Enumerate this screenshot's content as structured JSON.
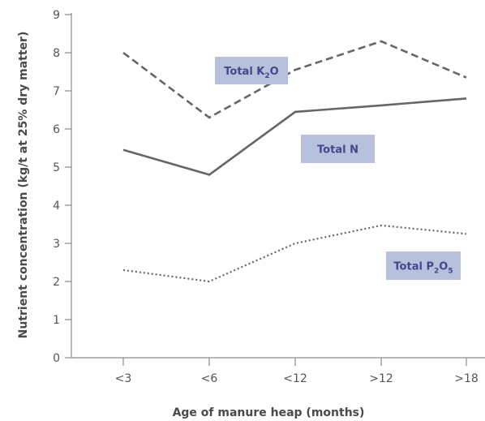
{
  "chart_data": {
    "type": "line",
    "categories": [
      "<3",
      "<6",
      "<12",
      ">12",
      ">18"
    ],
    "series": [
      {
        "name": "Total K2O",
        "label_main": "Total K",
        "label_sub": "2",
        "label_tail": "O",
        "values": [
          8.0,
          6.3,
          7.55,
          8.3,
          7.35
        ],
        "style": "dashed",
        "color": "#666666"
      },
      {
        "name": "Total N",
        "label_main": "Total N",
        "values": [
          5.45,
          4.8,
          6.45,
          6.62,
          6.8
        ],
        "style": "solid",
        "color": "#666666"
      },
      {
        "name": "Total P2O5",
        "label_main": "Total P",
        "label_sub": "2",
        "label_mid": "O",
        "label_sub2": "5",
        "values": [
          2.3,
          2.0,
          3.0,
          3.47,
          3.25
        ],
        "style": "dotted",
        "color": "#666666"
      }
    ],
    "xlabel": "Age of manure heap (months)",
    "ylabel": "Nutrient concentration (kg/t at 25% dry matter)",
    "ylim": [
      0,
      9
    ],
    "yticks": [
      0,
      1,
      2,
      3,
      4,
      5,
      6,
      7,
      8,
      9
    ],
    "grid": false
  }
}
